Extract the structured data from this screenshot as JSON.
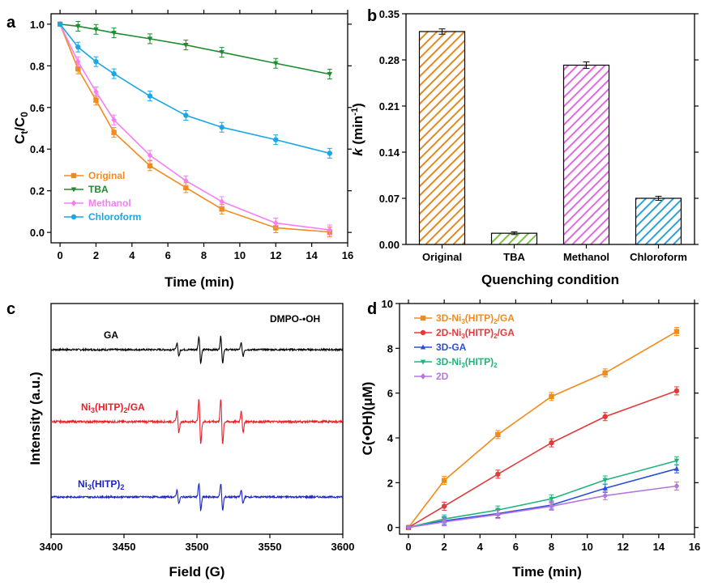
{
  "chart_data": [
    {
      "panel": "a",
      "type": "line",
      "xlabel": "Time (min)",
      "ylabel": "Ct/C0",
      "ylabel_main": "C",
      "ylabel_sub1": "t",
      "ylabel_slash": "/C",
      "ylabel_sub2": "0",
      "xlim": [
        -0.5,
        16
      ],
      "ylim": [
        -0.05,
        1.05
      ],
      "xticks": [
        0,
        2,
        4,
        6,
        8,
        10,
        12,
        14,
        16
      ],
      "yticks": [
        0.0,
        0.2,
        0.4,
        0.6,
        0.8,
        1.0
      ],
      "ytick_labels": [
        "0.0",
        "0.2",
        "0.4",
        "0.6",
        "0.8",
        "1.0"
      ],
      "x": [
        0,
        1,
        2,
        3,
        5,
        7,
        9,
        12,
        15
      ],
      "legend_position": "bottom-left",
      "series": [
        {
          "name": "Original",
          "color": "#f28b1b",
          "marker": "square",
          "values": [
            1.0,
            0.785,
            0.635,
            0.48,
            0.32,
            0.215,
            0.112,
            0.022,
            0.002
          ]
        },
        {
          "name": "TBA",
          "color": "#1e8c2e",
          "marker": "triangle-down",
          "values": [
            1.0,
            0.99,
            0.975,
            0.958,
            0.93,
            0.9,
            0.865,
            0.812,
            0.76
          ]
        },
        {
          "name": "Methanol",
          "color": "#f57ef2",
          "marker": "diamond",
          "values": [
            1.0,
            0.82,
            0.675,
            0.54,
            0.37,
            0.248,
            0.148,
            0.045,
            0.012
          ]
        },
        {
          "name": "Chloroform",
          "color": "#1ba6e6",
          "marker": "circle",
          "values": [
            1.0,
            0.89,
            0.82,
            0.762,
            0.655,
            0.562,
            0.505,
            0.445,
            0.38
          ]
        }
      ]
    },
    {
      "panel": "b",
      "type": "bar",
      "xlabel": "Quenching condition",
      "ylabel": "k (min-1)",
      "ylabel_k": "k",
      "ylabel_unit": " (min",
      "ylabel_sup": "-1",
      "ylabel_close": ")",
      "categories": [
        "Original",
        "TBA",
        "Methanol",
        "Chloroform"
      ],
      "values": [
        0.323,
        0.017,
        0.272,
        0.07
      ],
      "errors": [
        0.004,
        0.002,
        0.005,
        0.003
      ],
      "colors": [
        "#e08a23",
        "#7cc146",
        "#e16ae0",
        "#2aa3d9"
      ],
      "ylim": [
        0,
        0.35
      ],
      "yticks": [
        0.0,
        0.07,
        0.14,
        0.21,
        0.28,
        0.35
      ],
      "ytick_labels": [
        "0.00",
        "0.07",
        "0.14",
        "0.21",
        "0.28",
        "0.35"
      ]
    },
    {
      "panel": "c",
      "type": "line",
      "xlabel": "Field (G)",
      "ylabel": "Intensity (a.u.)",
      "xlim": [
        3400,
        3600
      ],
      "xticks": [
        3400,
        3450,
        3500,
        3550,
        3600
      ],
      "annotation": "DMPO-•OH",
      "peak_fields": [
        3487,
        3502,
        3517,
        3531
      ],
      "peak_relative_heights": [
        1,
        2,
        2,
        1
      ],
      "series": [
        {
          "name": "GA",
          "label_main": "GA",
          "label_sub": "",
          "label_tail": "",
          "label_tail_sub": "",
          "color": "#000000",
          "amplitude": 0.6
        },
        {
          "name": "Ni3(HITP)2/GA",
          "label_main": "Ni",
          "label_sub": "3",
          "label_tail": "(HITP)",
          "label_tail_sub": "2",
          "label_end": "/GA",
          "color": "#e8202a",
          "amplitude": 1.0
        },
        {
          "name": "Ni3(HITP)2",
          "label_main": "Ni",
          "label_sub": "3",
          "label_tail": "(HITP)",
          "label_tail_sub": "2",
          "label_end": "",
          "color": "#1a23c9",
          "amplitude": 0.62
        }
      ]
    },
    {
      "panel": "d",
      "type": "line",
      "xlabel": "Time (min)",
      "ylabel": "C(•OH)(μM)",
      "xlim": [
        -0.5,
        16
      ],
      "ylim": [
        -0.3,
        10
      ],
      "xticks": [
        0,
        2,
        4,
        6,
        8,
        10,
        12,
        14,
        16
      ],
      "yticks": [
        0,
        2,
        4,
        6,
        8,
        10
      ],
      "ytick_labels": [
        "0",
        "2",
        "4",
        "6",
        "8",
        "10"
      ],
      "x": [
        0,
        2,
        5,
        8,
        11,
        15
      ],
      "legend_position": "top-left",
      "series": [
        {
          "name": "3D-Ni3(HITP)2/GA",
          "p1": "3D-Ni",
          "s1": "3",
          "p2": "(HITP)",
          "s2": "2",
          "p3": "/GA",
          "color": "#f28b1b",
          "marker": "square",
          "values": [
            0,
            2.1,
            4.15,
            5.85,
            6.9,
            8.75
          ]
        },
        {
          "name": "2D-Ni3(HITP)2/GA",
          "p1": "2D-Ni",
          "s1": "3",
          "p2": "(HITP)",
          "s2": "2",
          "p3": "/GA",
          "color": "#e43a3a",
          "marker": "circle",
          "values": [
            0,
            0.95,
            2.38,
            3.78,
            4.95,
            6.1
          ]
        },
        {
          "name": "3D-GA",
          "p1": "3D-GA",
          "s1": "",
          "p2": "",
          "s2": "",
          "p3": "",
          "color": "#2a4fd6",
          "marker": "triangle-up",
          "values": [
            0,
            0.3,
            0.62,
            1.0,
            1.75,
            2.62
          ]
        },
        {
          "name": "3D-Ni3(HITP)2",
          "p1": "3D-Ni",
          "s1": "3",
          "p2": "(HITP)",
          "s2": "2",
          "p3": "",
          "color": "#22b37a",
          "marker": "triangle-down",
          "values": [
            0,
            0.38,
            0.78,
            1.28,
            2.12,
            2.98
          ]
        },
        {
          "name": "2D",
          "p1": "2D",
          "s1": "",
          "p2": "",
          "s2": "",
          "p3": "",
          "color": "#b576df",
          "marker": "diamond",
          "values": [
            0,
            0.25,
            0.58,
            0.95,
            1.42,
            1.85
          ]
        }
      ]
    }
  ]
}
